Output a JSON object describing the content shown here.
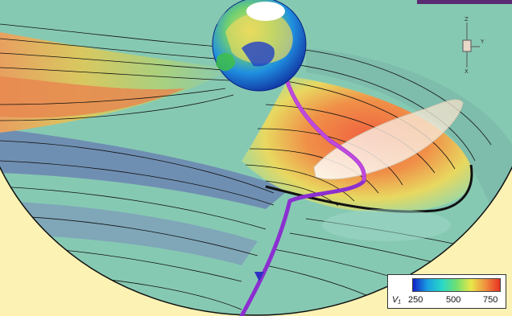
{
  "colorbar": {
    "variable": "V₁",
    "ticks": [
      "250",
      "500",
      "750"
    ],
    "range": [
      200,
      800
    ],
    "colors": [
      "#1020c8",
      "#1aa0e0",
      "#28d8c8",
      "#70e070",
      "#e8e84a",
      "#f09040",
      "#e83020"
    ]
  },
  "axes_triad": {
    "z_label": "Z",
    "y_label": "Y",
    "x_label": "X"
  },
  "palette": {
    "background": "#ffffff",
    "outer_region": "#fbf2b4",
    "slow_wind": "#6f8fb2",
    "medium_wind": "#86c9b3",
    "fast_wind": "#e07a4c",
    "field_line": "#8b2fd0",
    "contour_lines": "#111111"
  },
  "scene": {
    "description_visible": false
  }
}
